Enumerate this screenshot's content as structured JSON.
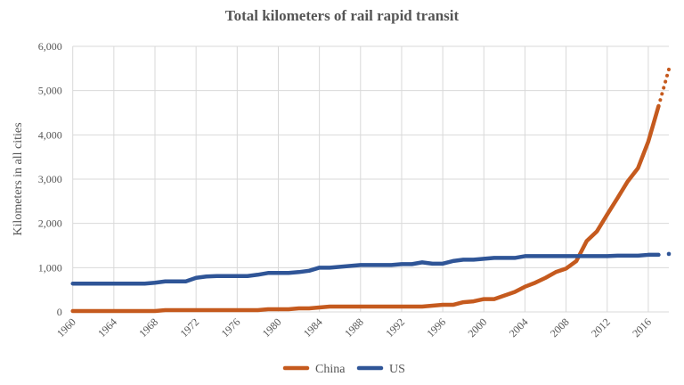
{
  "chart_data": {
    "type": "line",
    "title": "Total kilometers of rail rapid transit",
    "xlabel": "",
    "ylabel": "Kilometers in all cities",
    "xlim": [
      1960,
      2018
    ],
    "ylim": [
      0,
      6000
    ],
    "yticks": [
      0,
      1000,
      2000,
      3000,
      4000,
      5000,
      6000
    ],
    "ytick_labels": [
      "0",
      "1,000",
      "2,000",
      "3,000",
      "4,000",
      "5,000",
      "6,000"
    ],
    "xticks": [
      1960,
      1964,
      1968,
      1972,
      1976,
      1980,
      1984,
      1988,
      1992,
      1996,
      2000,
      2004,
      2008,
      2012,
      2016
    ],
    "xtick_labels": [
      "1960",
      "1964",
      "1968",
      "1972",
      "1976",
      "1980",
      "1984",
      "1988",
      "1992",
      "1996",
      "2000",
      "2004",
      "2008",
      "2012",
      "2016"
    ],
    "grid": true,
    "legend_position": "bottom",
    "x": [
      1960,
      1961,
      1962,
      1963,
      1964,
      1965,
      1966,
      1967,
      1968,
      1969,
      1970,
      1971,
      1972,
      1973,
      1974,
      1975,
      1976,
      1977,
      1978,
      1979,
      1980,
      1981,
      1982,
      1983,
      1984,
      1985,
      1986,
      1987,
      1988,
      1989,
      1990,
      1991,
      1992,
      1993,
      1994,
      1995,
      1996,
      1997,
      1998,
      1999,
      2000,
      2001,
      2002,
      2003,
      2004,
      2005,
      2006,
      2007,
      2008,
      2009,
      2010,
      2011,
      2012,
      2013,
      2014,
      2015,
      2016,
      2017
    ],
    "series": [
      {
        "name": "China",
        "color": "#c55a1e",
        "values": [
          20,
          20,
          20,
          20,
          20,
          20,
          20,
          20,
          20,
          40,
          40,
          40,
          40,
          40,
          40,
          40,
          40,
          40,
          40,
          60,
          60,
          60,
          80,
          80,
          100,
          120,
          120,
          120,
          120,
          120,
          120,
          120,
          120,
          120,
          120,
          140,
          160,
          160,
          220,
          240,
          290,
          290,
          370,
          450,
          570,
          660,
          770,
          900,
          980,
          1150,
          1600,
          1820,
          2200,
          2570,
          2950,
          3250,
          3850,
          4650
        ],
        "projected": {
          "x": [
            2017,
            2018
          ],
          "values": [
            4650,
            5480
          ]
        }
      },
      {
        "name": "US",
        "color": "#2f5597",
        "values": [
          640,
          640,
          640,
          640,
          640,
          640,
          640,
          640,
          660,
          690,
          690,
          690,
          770,
          800,
          810,
          810,
          810,
          810,
          840,
          880,
          880,
          880,
          900,
          930,
          1000,
          1000,
          1020,
          1040,
          1060,
          1060,
          1060,
          1060,
          1080,
          1080,
          1120,
          1090,
          1090,
          1150,
          1180,
          1180,
          1200,
          1220,
          1220,
          1220,
          1260,
          1260,
          1260,
          1260,
          1260,
          1260,
          1260,
          1260,
          1260,
          1270,
          1270,
          1270,
          1290,
          1290
        ],
        "projected": {
          "x": [
            2018
          ],
          "values": [
            1310
          ]
        }
      }
    ]
  }
}
